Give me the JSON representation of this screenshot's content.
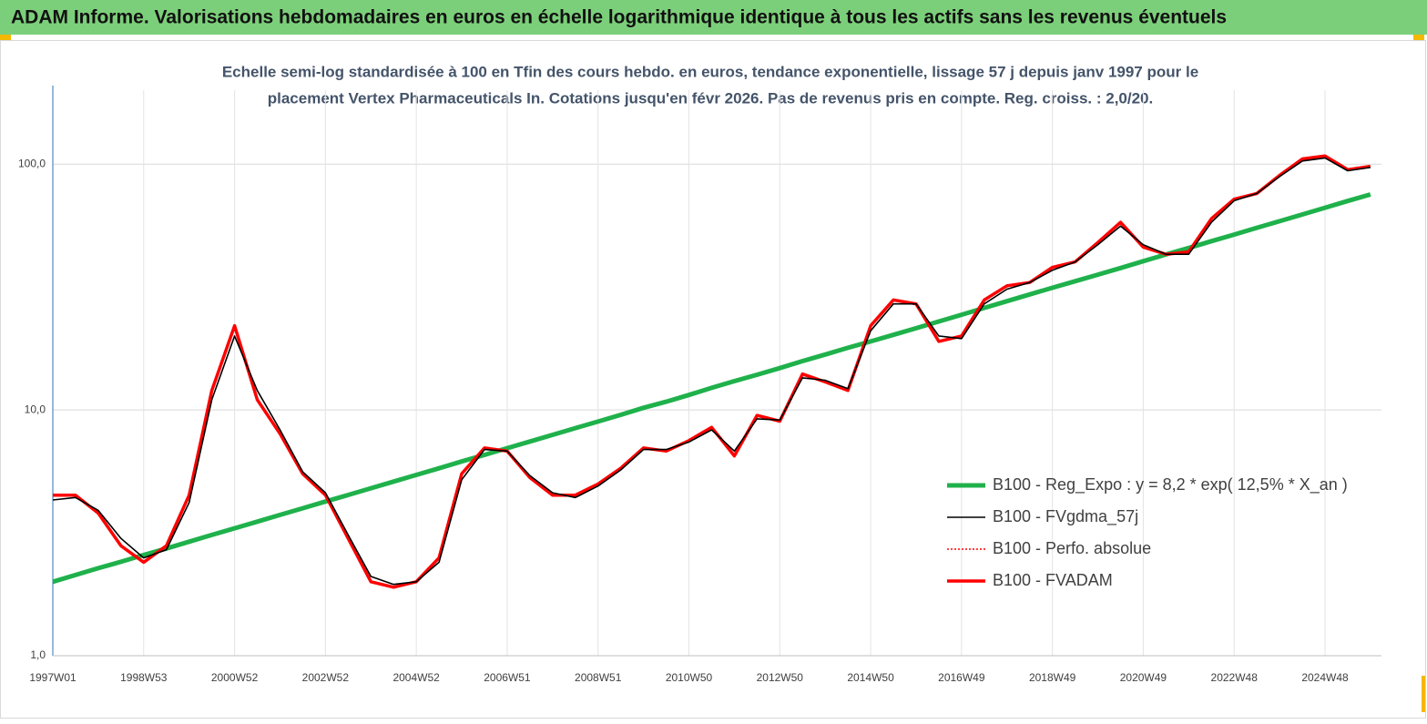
{
  "chart_data": {
    "type": "line",
    "title": "ADAM Informe. Valorisations hebdomadaires en euros en échelle logarithmique identique à tous les actifs sans les revenus éventuels",
    "subtitle": [
      "Echelle semi-log standardisée à 100 en Tfin des cours hebdo. en euros, tendance exponentielle, lissage 57 j depuis janv 1997 pour le",
      "placement Vertex Pharmaceuticals In. Cotations jusqu'en févr 2026. Pas de revenus pris en compte. Reg. croiss. : 2,0/20."
    ],
    "categories": [
      "1997W01",
      null,
      null,
      null,
      "1998W53",
      null,
      null,
      null,
      "2000W52",
      null,
      null,
      null,
      "2002W52",
      null,
      null,
      null,
      "2004W52",
      null,
      null,
      null,
      "2006W51",
      null,
      null,
      null,
      "2008W51",
      null,
      null,
      null,
      "2010W50",
      null,
      null,
      null,
      "2012W50",
      null,
      null,
      null,
      "2014W50",
      null,
      null,
      null,
      "2016W49",
      null,
      null,
      null,
      "2018W49",
      null,
      null,
      null,
      "2020W49",
      null,
      null,
      null,
      "2022W48",
      null,
      null,
      null,
      "2024W48",
      null,
      null
    ],
    "log_scale": true,
    "ylim": [
      1,
      200
    ],
    "yticks": [
      {
        "value": 1,
        "label": "1,0"
      },
      {
        "value": 10,
        "label": "10,0"
      },
      {
        "value": 100,
        "label": "100,0"
      }
    ],
    "grid": true,
    "legend": "right",
    "series": [
      {
        "name": "B100 - Reg_Expo : y = 8,2 * exp( 12,5% *  X_an )",
        "color": "#1fb14b",
        "values": [
          2.0,
          2.13,
          2.27,
          2.41,
          2.57,
          2.73,
          2.91,
          3.1,
          3.3,
          3.51,
          3.74,
          3.98,
          4.24,
          4.51,
          4.8,
          5.11,
          5.44,
          5.79,
          6.17,
          6.56,
          6.99,
          7.44,
          7.92,
          8.43,
          8.97,
          9.55,
          10.2,
          10.8,
          11.5,
          12.3,
          13.1,
          13.9,
          14.8,
          15.8,
          16.8,
          17.9,
          19.0,
          20.2,
          21.5,
          22.9,
          24.4,
          26.0,
          27.7,
          29.5,
          31.4,
          33.4,
          35.5,
          37.8,
          40.3,
          42.9,
          45.6,
          48.6,
          51.7,
          55.1,
          58.6,
          62.4,
          66.5,
          70.8,
          75.3
        ]
      },
      {
        "name": "B100 - FVgdma_57j",
        "color": "#000000",
        "values": [
          4.3,
          4.4,
          3.9,
          3.0,
          2.5,
          2.7,
          4.2,
          11,
          20,
          12,
          8.3,
          5.6,
          4.6,
          3.1,
          2.1,
          1.95,
          2.0,
          2.4,
          5.2,
          6.9,
          6.8,
          5.4,
          4.6,
          4.4,
          4.9,
          5.7,
          6.9,
          6.9,
          7.4,
          8.3,
          6.8,
          9.2,
          9.1,
          13.5,
          13.2,
          12.2,
          21,
          27,
          27,
          20,
          19.5,
          27,
          31,
          33,
          37,
          40,
          47,
          56,
          47,
          43,
          43,
          58,
          71,
          76,
          89,
          103,
          106,
          94,
          97
        ]
      },
      {
        "name": "B100 - Perfo. absolue",
        "color": "#ff0000",
        "values": [
          4.5,
          4.5,
          3.8,
          2.8,
          2.4,
          2.8,
          4.5,
          12,
          22,
          11,
          8,
          5.5,
          4.5,
          3.0,
          2.0,
          1.9,
          2.0,
          2.5,
          5.5,
          7.0,
          6.8,
          5.3,
          4.5,
          4.5,
          5.0,
          5.8,
          7.0,
          6.8,
          7.5,
          8.5,
          6.5,
          9.5,
          9.0,
          14,
          13,
          12,
          22,
          28,
          27,
          19,
          20,
          28,
          32,
          33,
          38,
          40,
          48,
          58,
          46,
          43,
          44,
          60,
          72,
          76,
          90,
          105,
          108,
          95,
          98
        ]
      },
      {
        "name": "B100 - FVADAM",
        "color": "#ff0000",
        "values": [
          4.5,
          4.5,
          3.8,
          2.8,
          2.4,
          2.8,
          4.5,
          12,
          22,
          11,
          8,
          5.5,
          4.5,
          3.0,
          2.0,
          1.9,
          2.0,
          2.5,
          5.5,
          7.0,
          6.8,
          5.3,
          4.5,
          4.5,
          5.0,
          5.8,
          7.0,
          6.8,
          7.5,
          8.5,
          6.5,
          9.5,
          9.0,
          14,
          13,
          12,
          22,
          28,
          27,
          19,
          20,
          28,
          32,
          33,
          38,
          40,
          48,
          58,
          46,
          43,
          44,
          60,
          72,
          76,
          90,
          105,
          108,
          95,
          98
        ]
      }
    ]
  }
}
